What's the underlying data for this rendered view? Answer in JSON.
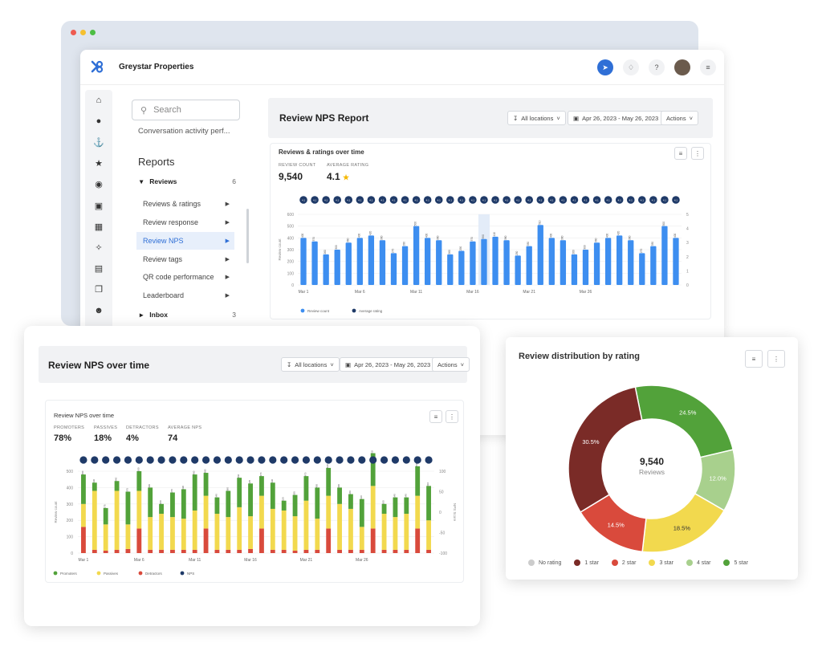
{
  "app": {
    "brand": "Greystar Properties"
  },
  "sidebar": {
    "search_placeholder": "Search",
    "truncated_item": "Conversation activity perf...",
    "reports_title": "Reports",
    "reviews_group": {
      "label": "Reviews",
      "count": "6"
    },
    "items": [
      {
        "label": "Reviews & ratings"
      },
      {
        "label": "Review response"
      },
      {
        "label": "Review NPS"
      },
      {
        "label": "Review tags"
      },
      {
        "label": "QR code performance"
      },
      {
        "label": "Leaderboard"
      }
    ],
    "inbox_group": {
      "label": "Inbox",
      "count": "3"
    }
  },
  "report": {
    "title": "Review NPS Report",
    "filters": {
      "locations": "All locations",
      "date_range": "Apr 26, 2023 - May 26, 2023",
      "actions": "Actions"
    },
    "card_title": "Reviews & ratings over time",
    "stats": [
      {
        "label": "REVIEW COUNT",
        "value": "9,540"
      },
      {
        "label": "AVERAGE RATING",
        "value": "4.1"
      }
    ]
  },
  "nps": {
    "title": "Review NPS over time",
    "filters": {
      "locations": "All locations",
      "date_range": "Apr 26, 2023 - May 26, 2023",
      "actions": "Actions"
    },
    "card_title": "Review NPS over time",
    "stats": [
      {
        "label": "PROMOTERS",
        "value": "78%"
      },
      {
        "label": "PASSIVES",
        "value": "18%"
      },
      {
        "label": "DETRACTORS",
        "value": "4%"
      },
      {
        "label": "AVERAGE NPS",
        "value": "74"
      }
    ]
  },
  "distribution": {
    "title": "Review distribution by rating",
    "center_value": "9,540",
    "center_label": "Reviews"
  },
  "colors": {
    "accent": "#2f6fd6",
    "bar_blue": "#3d8ef0",
    "nps_navy": "#1f3a68",
    "promoters": "#52a23a",
    "passives": "#f2d94e",
    "detractors": "#d94a3c",
    "one_star": "#7a2b27",
    "two_star": "#d94a3c",
    "three_star": "#f2d94e",
    "four_star": "#a8d08d",
    "five_star": "#52a23a",
    "no_rating": "#cccccc"
  },
  "chart_data": [
    {
      "type": "bar",
      "title": "Reviews & ratings over time",
      "xlabel": "",
      "ylabel": "Review count",
      "y2label": "",
      "ylim": [
        0,
        600
      ],
      "y2lim": [
        0,
        5
      ],
      "yticks": [
        "0",
        "100",
        "200",
        "300",
        "400",
        "500",
        "600"
      ],
      "y2ticks": [
        "0",
        "1",
        "2",
        "3",
        "4",
        "5"
      ],
      "xticks": [
        "Mar 1",
        "Mar 6",
        "Mar 11",
        "Mar 16",
        "Mar 21",
        "Mar 26"
      ],
      "series": [
        {
          "name": "Review count",
          "values": [
            400,
            370,
            260,
            300,
            360,
            400,
            420,
            380,
            270,
            330,
            500,
            400,
            380,
            260,
            290,
            370,
            390,
            410,
            380,
            250,
            330,
            510,
            400,
            380,
            260,
            300,
            360,
            400,
            420,
            380,
            270,
            330,
            500,
            400
          ]
        },
        {
          "name": "Average rating",
          "values": [
            4.1,
            4.1,
            4.1,
            4.1,
            4.1,
            4.1,
            4.1,
            4.1,
            4.1,
            4.1,
            4.1,
            4.1,
            4.1,
            4.1,
            4.1,
            4.1,
            4.1,
            4.1,
            4.1,
            4.1,
            4.1,
            4.1,
            4.1,
            4.1,
            4.1,
            4.1,
            4.1,
            4.1,
            4.1,
            4.1,
            4.1,
            4.1,
            4.1,
            4.1
          ]
        }
      ],
      "legend": [
        "Review count",
        "Average rating"
      ]
    },
    {
      "type": "bar",
      "stacked": true,
      "title": "Review NPS over time",
      "ylabel": "Review count",
      "y2label": "NPS Score",
      "ylim": [
        0,
        500
      ],
      "y2lim": [
        -100,
        100
      ],
      "yticks": [
        "0",
        "100",
        "200",
        "300",
        "400",
        "500"
      ],
      "y2ticks": [
        "-100",
        "-50",
        "0",
        "50",
        "100"
      ],
      "xticks": [
        "Mar 1",
        "Mar 6",
        "Mar 11",
        "Mar 16",
        "Mar 21",
        "Mar 26"
      ],
      "series": [
        {
          "name": "Promoters",
          "values": [
            180,
            50,
            100,
            60,
            200,
            120,
            180,
            60,
            150,
            180,
            220,
            140,
            100,
            160,
            180,
            200,
            120,
            160,
            60,
            130,
            150,
            190,
            170,
            100,
            90,
            170,
            200,
            60,
            120,
            100,
            180,
            210
          ]
        },
        {
          "name": "Passives",
          "values": [
            140,
            360,
            160,
            360,
            150,
            230,
            200,
            220,
            200,
            190,
            240,
            200,
            220,
            200,
            260,
            200,
            200,
            250,
            240,
            210,
            300,
            190,
            200,
            280,
            250,
            140,
            260,
            220,
            200,
            220,
            200,
            180
          ]
        },
        {
          "name": "Detractors",
          "values": [
            160,
            20,
            15,
            20,
            25,
            150,
            20,
            20,
            20,
            20,
            20,
            150,
            20,
            20,
            20,
            25,
            150,
            20,
            20,
            15,
            20,
            20,
            150,
            20,
            20,
            20,
            150,
            20,
            20,
            20,
            150,
            20
          ]
        }
      ],
      "legend": [
        "Promoters",
        "Passives",
        "Detractors",
        "NPS"
      ]
    },
    {
      "type": "pie",
      "donut": true,
      "title": "Review distribution by rating",
      "categories": [
        "5 star",
        "4 star",
        "3 star",
        "2 star",
        "1 star",
        "No rating"
      ],
      "values": [
        24.5,
        12.0,
        18.5,
        14.5,
        30.5,
        0
      ],
      "labels": [
        "24.5%",
        "12.0%",
        "18.5%",
        "14.5%",
        "30.5%",
        ""
      ],
      "legend": [
        "No rating",
        "1 star",
        "2 star",
        "3 star",
        "4 star",
        "5 star"
      ]
    }
  ]
}
